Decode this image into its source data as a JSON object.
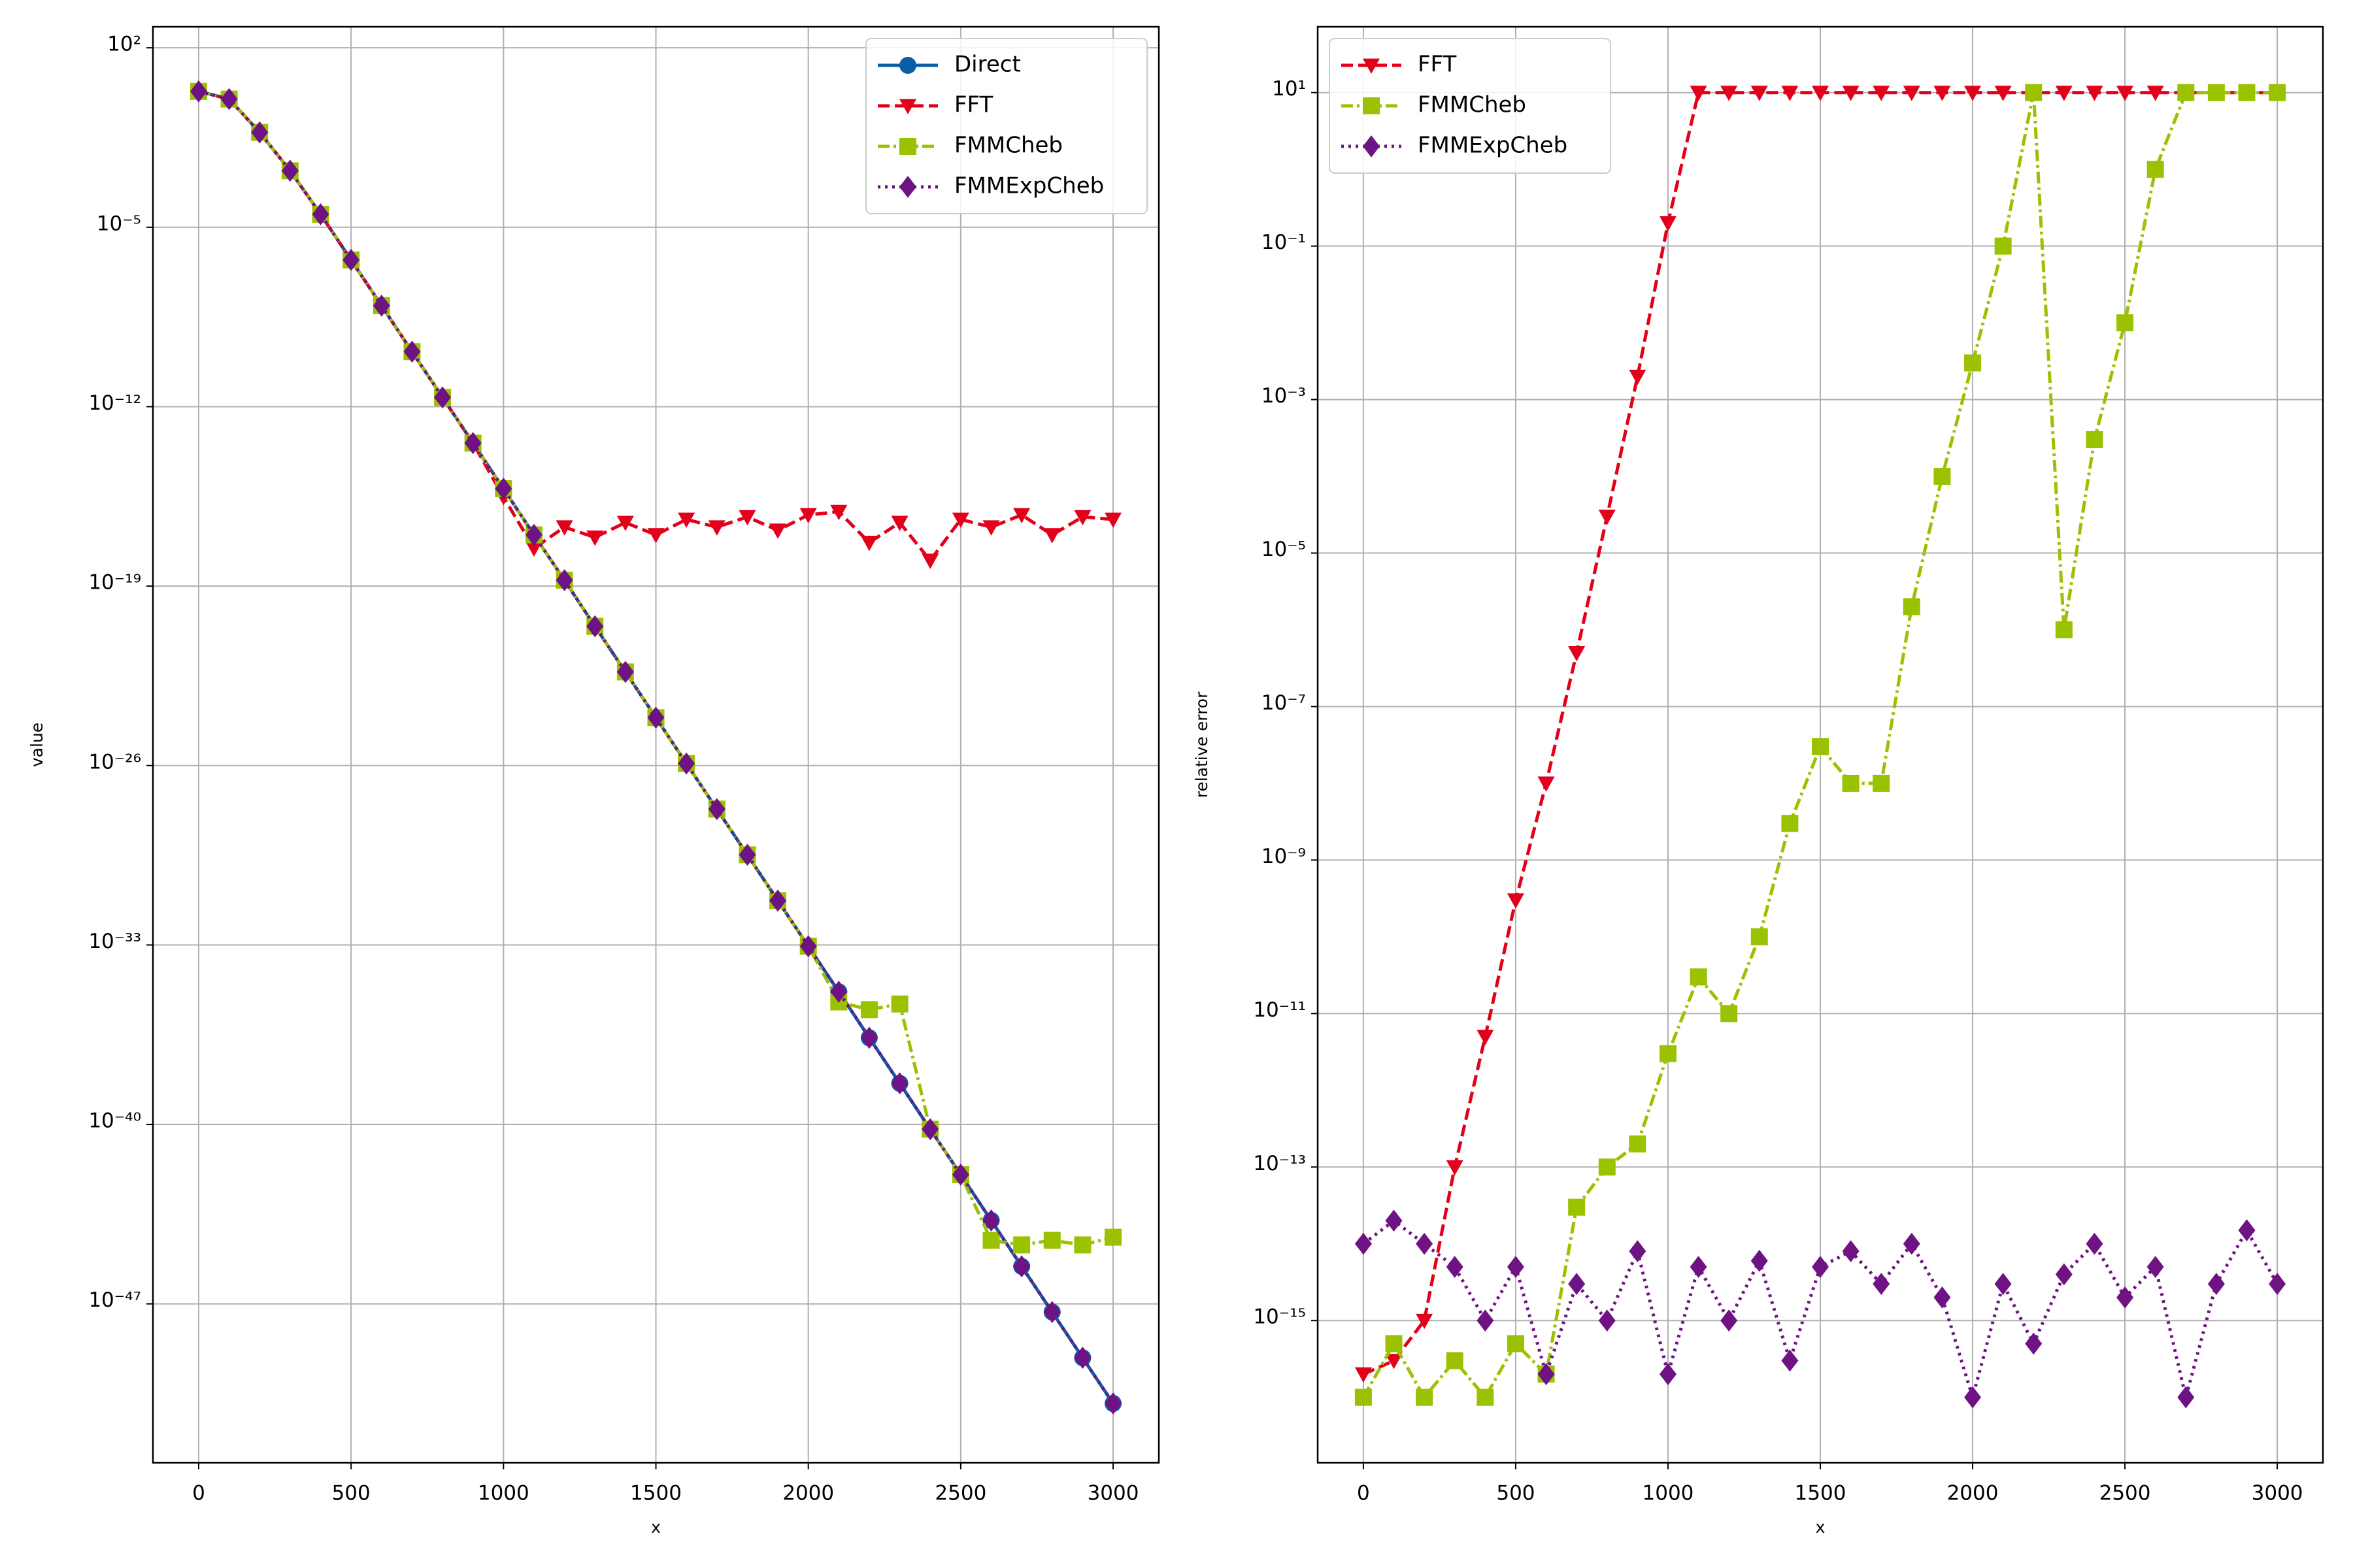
{
  "chart_data": [
    {
      "type": "line",
      "xlabel": "x",
      "ylabel": "value",
      "log_y": true,
      "grid": true,
      "legend": "upper right",
      "xlim": [
        -150,
        3150
      ],
      "ylim": [
        6.3e-54,
        660
      ],
      "xticks": [
        0,
        500,
        1000,
        1500,
        2000,
        2500,
        3000
      ],
      "yticks": [
        {
          "value": 100,
          "label": "10²"
        },
        {
          "value": 1e-05,
          "label": "10⁻⁵"
        },
        {
          "value": 1e-12,
          "label": "10⁻¹²"
        },
        {
          "value": 1e-19,
          "label": "10⁻¹⁹"
        },
        {
          "value": 1e-26,
          "label": "10⁻²⁶"
        },
        {
          "value": 1e-33,
          "label": "10⁻³³"
        },
        {
          "value": 1e-40,
          "label": "10⁻⁴⁰"
        },
        {
          "value": 1e-47,
          "label": "10⁻⁴⁷"
        }
      ],
      "x": [
        0,
        100,
        200,
        300,
        400,
        500,
        600,
        700,
        800,
        900,
        1000,
        1100,
        1200,
        1300,
        1400,
        1500,
        1600,
        1700,
        1800,
        1900,
        2000,
        2100,
        2200,
        2300,
        2400,
        2500,
        2600,
        2700,
        2800,
        2900,
        3000
      ],
      "series": [
        {
          "name": "Direct",
          "color": "#0c5da5",
          "marker": "circle",
          "linestyle": "solid",
          "values": [
            2,
            1,
            0.05,
            0.0016,
            3.2e-05,
            5.3e-07,
            8.7e-09,
            1.4e-10,
            2.3e-12,
            3.8e-14,
            6.3e-16,
            1e-17,
            1.7e-19,
            2.7e-21,
            4.5e-23,
            7.4e-25,
            1.2e-26,
            2e-28,
            3.3e-30,
            5.4e-32,
            8.9e-34,
            1.5e-35,
            2.4e-37,
            4e-39,
            6.5e-41,
            1.1e-42,
            1.8e-44,
            2.9e-46,
            4.8e-48,
            7.9e-50,
            1.3e-51
          ]
        },
        {
          "name": "FFT",
          "color": "#e2001a",
          "marker": "triangle-down",
          "linestyle": "dashed",
          "values": [
            2,
            1,
            0.05,
            0.0016,
            3.2e-05,
            5.3e-07,
            8.7e-09,
            1.4e-10,
            2.3e-12,
            3.8e-14,
            3e-16,
            3e-18,
            2e-17,
            8e-18,
            3e-17,
            1e-17,
            4e-17,
            2e-17,
            5e-17,
            1.5e-17,
            6e-17,
            8e-17,
            5e-18,
            3e-17,
            1e-18,
            4e-17,
            2e-17,
            6e-17,
            1e-17,
            5e-17,
            4e-17
          ]
        },
        {
          "name": "FMMCheb",
          "color": "#9bc200",
          "marker": "square",
          "linestyle": "dashdot",
          "values": [
            2,
            1,
            0.05,
            0.0016,
            3.2e-05,
            5.3e-07,
            8.7e-09,
            1.4e-10,
            2.3e-12,
            3.8e-14,
            6.3e-16,
            1e-17,
            1.7e-19,
            2.7e-21,
            4.5e-23,
            7.4e-25,
            1.2e-26,
            2e-28,
            3.3e-30,
            5.4e-32,
            8.9e-34,
            6e-36,
            3e-36,
            5e-36,
            6.5e-41,
            1.1e-42,
            3e-45,
            2e-45,
            3e-45,
            2e-45,
            4e-45
          ]
        },
        {
          "name": "FMMExpCheb",
          "color": "#6f1283",
          "marker": "diamond",
          "linestyle": "dotted",
          "values": [
            2,
            1,
            0.05,
            0.0016,
            3.2e-05,
            5.3e-07,
            8.7e-09,
            1.4e-10,
            2.3e-12,
            3.8e-14,
            6.3e-16,
            1e-17,
            1.7e-19,
            2.7e-21,
            4.5e-23,
            7.4e-25,
            1.2e-26,
            2e-28,
            3.3e-30,
            5.4e-32,
            8.9e-34,
            1.5e-35,
            2.4e-37,
            4e-39,
            6.5e-41,
            1.1e-42,
            1.8e-44,
            2.9e-46,
            4.8e-48,
            7.9e-50,
            1.3e-51
          ]
        }
      ]
    },
    {
      "type": "line",
      "xlabel": "x",
      "ylabel": "relative error",
      "log_y": true,
      "grid": true,
      "legend": "upper left",
      "xlim": [
        -150,
        3150
      ],
      "ylim": [
        1.4e-17,
        72
      ],
      "xticks": [
        0,
        500,
        1000,
        1500,
        2000,
        2500,
        3000
      ],
      "yticks": [
        {
          "value": 10,
          "label": "10¹"
        },
        {
          "value": 0.1,
          "label": "10⁻¹"
        },
        {
          "value": 0.001,
          "label": "10⁻³"
        },
        {
          "value": 1e-05,
          "label": "10⁻⁵"
        },
        {
          "value": 1e-07,
          "label": "10⁻⁷"
        },
        {
          "value": 1e-09,
          "label": "10⁻⁹"
        },
        {
          "value": 1e-11,
          "label": "10⁻¹¹"
        },
        {
          "value": 1e-13,
          "label": "10⁻¹³"
        },
        {
          "value": 1e-15,
          "label": "10⁻¹⁵"
        }
      ],
      "x": [
        0,
        100,
        200,
        300,
        400,
        500,
        600,
        700,
        800,
        900,
        1000,
        1100,
        1200,
        1300,
        1400,
        1500,
        1600,
        1700,
        1800,
        1900,
        2000,
        2100,
        2200,
        2300,
        2400,
        2500,
        2600,
        2700,
        2800,
        2900,
        3000
      ],
      "series": [
        {
          "name": "FFT",
          "color": "#e2001a",
          "marker": "triangle-down",
          "linestyle": "dashed",
          "values": [
            2e-16,
            3e-16,
            1e-15,
            1e-13,
            5e-12,
            3e-10,
            1e-08,
            5e-07,
            3e-05,
            0.002,
            0.2,
            10,
            10,
            10,
            10,
            10,
            10,
            10,
            10,
            10,
            10,
            10,
            10,
            10,
            10,
            10,
            10,
            10,
            10,
            10,
            10
          ]
        },
        {
          "name": "FMMCheb",
          "color": "#9bc200",
          "marker": "square",
          "linestyle": "dashdot",
          "values": [
            1e-16,
            5e-16,
            1e-16,
            3e-16,
            1e-16,
            5e-16,
            2e-16,
            3e-14,
            1e-13,
            2e-13,
            3e-12,
            3e-11,
            1e-11,
            1e-10,
            3e-09,
            3e-08,
            1e-08,
            1e-08,
            2e-06,
            0.0001,
            0.003,
            0.1,
            10,
            1e-06,
            0.0003,
            0.01,
            1,
            10,
            10,
            10,
            10
          ]
        },
        {
          "name": "FMMExpCheb",
          "color": "#6f1283",
          "marker": "diamond",
          "linestyle": "dotted",
          "values": [
            1e-14,
            2e-14,
            1e-14,
            5e-15,
            1e-15,
            5e-15,
            2e-16,
            3e-15,
            1e-15,
            8e-15,
            2e-16,
            5e-15,
            1e-15,
            6e-15,
            3e-16,
            5e-15,
            8e-15,
            3e-15,
            1e-14,
            2e-15,
            1e-16,
            3e-15,
            5e-16,
            4e-15,
            1e-14,
            2e-15,
            5e-15,
            1e-16,
            3e-15,
            1.5e-14,
            3e-15
          ]
        }
      ]
    }
  ]
}
